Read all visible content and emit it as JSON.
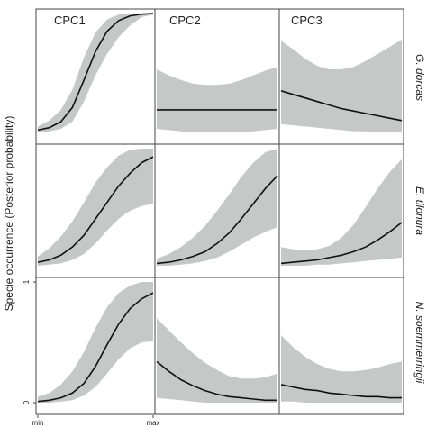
{
  "chart_data": {
    "type": "line",
    "ylabel": "Specie occurrence (Posterior probability)",
    "columns": [
      "CPC1",
      "CPC2",
      "CPC3"
    ],
    "rows": [
      "G. dorcas",
      "E. tilonura",
      "N. soemmerringii"
    ],
    "x_tick_labels": [
      "min",
      "max"
    ],
    "y_tick_labels": [
      "0",
      "1"
    ],
    "ylim": [
      0,
      1
    ],
    "x": [
      0,
      0.1,
      0.2,
      0.3,
      0.4,
      0.5,
      0.6,
      0.7,
      0.8,
      0.9,
      1.0
    ],
    "band_color": "#c6c8c7",
    "line_color": "#111111",
    "panels": [
      {
        "row": 0,
        "col": 0,
        "mean": [
          0.02,
          0.04,
          0.09,
          0.21,
          0.44,
          0.68,
          0.85,
          0.94,
          0.98,
          0.995,
          1.0
        ],
        "lower": [
          0.0,
          0.01,
          0.03,
          0.09,
          0.26,
          0.48,
          0.66,
          0.8,
          0.9,
          0.97,
          0.99
        ],
        "upper": [
          0.05,
          0.1,
          0.19,
          0.36,
          0.63,
          0.84,
          0.95,
          0.99,
          1.0,
          1.0,
          1.0
        ]
      },
      {
        "row": 0,
        "col": 1,
        "mean": [
          0.19,
          0.19,
          0.19,
          0.19,
          0.19,
          0.19,
          0.19,
          0.19,
          0.19,
          0.19,
          0.19
        ],
        "lower": [
          0.03,
          0.02,
          0.01,
          0.0,
          0.0,
          0.0,
          0.0,
          0.0,
          0.01,
          0.02,
          0.03
        ],
        "upper": [
          0.53,
          0.48,
          0.44,
          0.41,
          0.4,
          0.4,
          0.41,
          0.44,
          0.48,
          0.52,
          0.55
        ]
      },
      {
        "row": 0,
        "col": 2,
        "mean": [
          0.35,
          0.32,
          0.29,
          0.26,
          0.23,
          0.2,
          0.18,
          0.16,
          0.14,
          0.12,
          0.1
        ],
        "lower": [
          0.07,
          0.06,
          0.05,
          0.04,
          0.03,
          0.02,
          0.01,
          0.01,
          0.0,
          0.0,
          0.0
        ],
        "upper": [
          0.77,
          0.7,
          0.62,
          0.56,
          0.53,
          0.53,
          0.55,
          0.6,
          0.66,
          0.72,
          0.78
        ]
      },
      {
        "row": 1,
        "col": 0,
        "mean": [
          0.03,
          0.05,
          0.09,
          0.16,
          0.26,
          0.4,
          0.54,
          0.68,
          0.79,
          0.88,
          0.93
        ],
        "lower": [
          0.0,
          0.01,
          0.02,
          0.05,
          0.1,
          0.19,
          0.3,
          0.4,
          0.47,
          0.51,
          0.53
        ],
        "upper": [
          0.08,
          0.15,
          0.25,
          0.38,
          0.54,
          0.71,
          0.84,
          0.94,
          0.99,
          1.0,
          1.0
        ]
      },
      {
        "row": 1,
        "col": 1,
        "mean": [
          0.02,
          0.03,
          0.05,
          0.08,
          0.12,
          0.19,
          0.28,
          0.4,
          0.53,
          0.66,
          0.77
        ],
        "lower": [
          0.0,
          0.0,
          0.01,
          0.02,
          0.04,
          0.07,
          0.12,
          0.18,
          0.24,
          0.29,
          0.33
        ],
        "upper": [
          0.06,
          0.1,
          0.16,
          0.24,
          0.34,
          0.47,
          0.61,
          0.76,
          0.88,
          0.97,
          1.0
        ]
      },
      {
        "row": 1,
        "col": 2,
        "mean": [
          0.02,
          0.03,
          0.04,
          0.05,
          0.07,
          0.09,
          0.12,
          0.16,
          0.22,
          0.29,
          0.37
        ],
        "lower": [
          0.0,
          0.0,
          0.0,
          0.01,
          0.01,
          0.02,
          0.03,
          0.04,
          0.05,
          0.06,
          0.07
        ],
        "upper": [
          0.16,
          0.14,
          0.13,
          0.14,
          0.17,
          0.24,
          0.35,
          0.5,
          0.66,
          0.8,
          0.91
        ]
      },
      {
        "row": 2,
        "col": 0,
        "mean": [
          0.01,
          0.02,
          0.04,
          0.08,
          0.16,
          0.3,
          0.48,
          0.65,
          0.78,
          0.86,
          0.91
        ],
        "lower": [
          0.0,
          0.0,
          0.01,
          0.02,
          0.06,
          0.13,
          0.24,
          0.36,
          0.45,
          0.5,
          0.51
        ],
        "upper": [
          0.05,
          0.08,
          0.15,
          0.26,
          0.42,
          0.62,
          0.79,
          0.91,
          0.97,
          1.0,
          1.0
        ]
      },
      {
        "row": 2,
        "col": 1,
        "mean": [
          0.34,
          0.26,
          0.19,
          0.14,
          0.1,
          0.07,
          0.05,
          0.04,
          0.03,
          0.02,
          0.02
        ],
        "lower": [
          0.04,
          0.03,
          0.02,
          0.01,
          0.0,
          0.0,
          0.0,
          0.0,
          0.0,
          0.0,
          0.0
        ],
        "upper": [
          0.7,
          0.6,
          0.5,
          0.41,
          0.33,
          0.27,
          0.22,
          0.2,
          0.2,
          0.21,
          0.24
        ]
      },
      {
        "row": 2,
        "col": 2,
        "mean": [
          0.15,
          0.13,
          0.11,
          0.1,
          0.08,
          0.07,
          0.06,
          0.05,
          0.05,
          0.04,
          0.04
        ],
        "lower": [
          0.01,
          0.01,
          0.0,
          0.0,
          0.0,
          0.0,
          0.0,
          0.0,
          0.0,
          0.0,
          0.0
        ],
        "upper": [
          0.56,
          0.46,
          0.38,
          0.32,
          0.28,
          0.26,
          0.26,
          0.27,
          0.29,
          0.32,
          0.34
        ]
      }
    ]
  }
}
